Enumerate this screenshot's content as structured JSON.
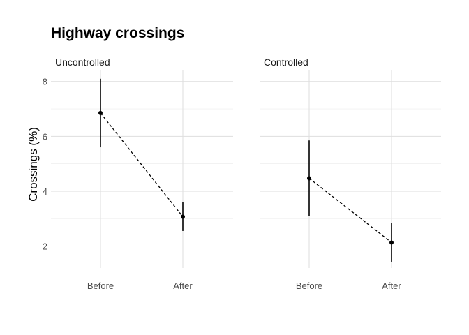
{
  "chart_data": {
    "type": "scatter",
    "title": "Highway crossings",
    "ylabel": "Crossings (%)",
    "xlabel": "",
    "categories": [
      "Before",
      "After"
    ],
    "yticks": [
      2,
      4,
      6,
      8
    ],
    "ylim": [
      1.2,
      8.4
    ],
    "grid": true,
    "panels": [
      {
        "name": "Uncontrolled",
        "points": [
          {
            "x": "Before",
            "y": 6.85,
            "low": 5.6,
            "high": 8.1
          },
          {
            "x": "After",
            "y": 3.07,
            "low": 2.55,
            "high": 3.6
          }
        ]
      },
      {
        "name": "Controlled",
        "points": [
          {
            "x": "Before",
            "y": 4.47,
            "low": 3.1,
            "high": 5.85
          },
          {
            "x": "After",
            "y": 2.13,
            "low": 1.43,
            "high": 2.83
          }
        ]
      }
    ],
    "colors": {
      "point": "#000000",
      "grid": "#dedede",
      "text": "#4d4d4d"
    }
  }
}
